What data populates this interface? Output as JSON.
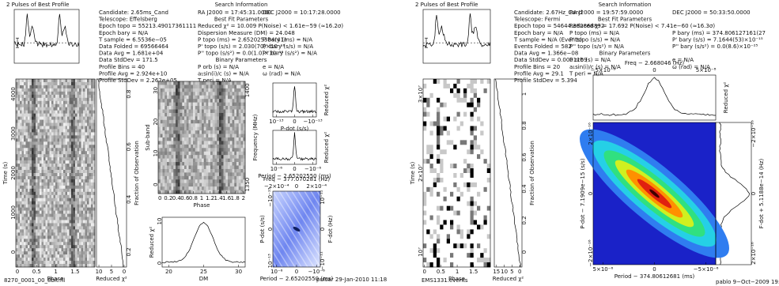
{
  "figures": [
    {
      "profile_title": "2 Pulses of Best Profile",
      "info": [
        "Candidate: 2.65ms_Cand",
        "Telescope: Effelsberg",
        "Epoch topo = 55213.49017361111",
        "Epoch bary = N/A",
        "T sample = 6.5536e−05",
        "Data Folded = 69566464",
        "Data Avg = 1.681e+04",
        "Data StdDev = 171.5",
        "Profile Bins = 40",
        "Profile Avg = 2.924e+10",
        "Profile StdDev = 2.262e+05"
      ],
      "search_title": "Search Information",
      "search_left": [
        "RA J2000 = 17:45:31.0000",
        "Best Fit Parameters",
        "Reduced χ² = 10.009   P(Noise) < 1.61e−59   (≈16.2σ)",
        "Dispersion Measure (DM) = 24.048",
        "P topo (ms) = 2.652025384(41)",
        "P' topo (s/s) = 2.030(70)×10⁻¹⁶",
        "P'' topo (s/s²) = 0.0(1.0)×10⁻¹⁶",
        "Binary Parameters",
        "P orb (s) = N/A",
        "a₁sin(i)/c (s) = N/A",
        "T peri = N/A"
      ],
      "search_right": [
        "DEC J2000 = 10:17:28.0000",
        "P bary (ms) = N/A",
        "P' bary (s/s) = N/A",
        "P'' bary (s/s²) = N/A",
        "e = N/A",
        "ω (rad) = N/A"
      ],
      "plots": {
        "time": {
          "xlabel": "Phase",
          "ylabel": "Time (s)",
          "xticks": [
            "0",
            "0.5",
            "1",
            "1.5"
          ],
          "yticks": [
            "0",
            "1000",
            "2000",
            "3000",
            "4000"
          ]
        },
        "chi_time": {
          "xlabel": "Reduced χ²",
          "xticks": [
            "10",
            "5",
            "0"
          ],
          "y2label": "Fraction of Observation",
          "y2ticks": [
            "0.2",
            "0.4",
            "0.6",
            "0.8"
          ]
        },
        "subband": {
          "xlabel": "Phase",
          "ylabel": "Sub-band",
          "y2label": "Frequency (MHz)",
          "xticks": [
            "0",
            "0.2",
            "0.4",
            "0.6",
            "0.8",
            "1",
            "1.2",
            "1.4",
            "1.6",
            "1.8",
            "2"
          ],
          "yticks": [
            "0",
            "10",
            "20",
            "30"
          ],
          "y2ticks": [
            "1350",
            "1400"
          ]
        },
        "dm": {
          "xlabel": "DM",
          "ylabel": "Reduced χ²",
          "xticks": [
            "20",
            "25",
            "30"
          ],
          "yticks": [
            "0",
            "10"
          ]
        },
        "pdot": {
          "xlabel": "P-dot (s/s)",
          "y2label": "Reduced χ²",
          "xticks": [
            "10⁻¹³",
            "0",
            "−10⁻¹³"
          ]
        },
        "period": {
          "xlabel": "Period − 2.65202550 (ms)",
          "y2label": "Reduced χ²",
          "xticks": [
            "10⁻⁶",
            "0",
            "−10⁻⁶"
          ]
        },
        "pp": {
          "x2label": "Freq − 377.070281 (Hz)",
          "x2ticks": [
            "−2×10⁻⁴",
            "0",
            "2×10⁻⁴"
          ],
          "xlabel": "Period − 2.65202550 (ms)",
          "xticks": [
            "10⁻⁶",
            "0",
            "−10⁻⁶"
          ],
          "ylabel": "P-dot (s/s)",
          "yticks": [
            "10⁻¹³",
            "0",
            "−10⁻¹³"
          ],
          "y2label": "F-dot (Hz)",
          "y2ticks": [
            "−10⁻¹¹",
            "0",
            "10⁻¹¹"
          ]
        }
      },
      "filename": "8270_0001_00_8bit.fil",
      "footer": "pulsar 29-Jan-2010 11:18"
    },
    {
      "profile_title": "2 Pulses of Best Profile",
      "info": [
        "Candidate: 2.67Hz_Cand",
        "Telescope: Fermi",
        "Epoch topo = 54644.382868892",
        "Epoch bary = N/A",
        "T sample = N/A (Events)",
        "Events Folded = 582",
        "Data Avg = 1.366e−08",
        "Data StdDev = 0.0001169",
        "Profile Bins = 20",
        "Profile Avg = 29.1",
        "Profile StdDev = 5.394"
      ],
      "search_title": "Search Information",
      "search_left": [
        "RA J2000 = 19:57:59.0000",
        "Best Fit Parameters",
        "Reduced χ² = 17.692   P(Noise) < 7.41e−60   (≈16.3σ)",
        "P topo (ms) = N/A",
        "P' topo (s/s) = N/A",
        "P'' topo (s/s²) = N/A",
        "Binary Parameters",
        "P orb (s) = N/A",
        "a₁sin(i)/c (s) = N/A",
        "T peri = N/A"
      ],
      "search_right": [
        "DEC J2000 = 50:33:50.0000",
        "P bary (ms) = 374.806127161(27",
        "P' bary (s/s) = 7.1644(53)×10⁻¹⁵",
        "P'' bary (s/s²) = 0.0(8.6)×10⁻²⁵",
        "e = N/A",
        "ω (rad) = N/A"
      ],
      "plots": {
        "time": {
          "xlabel": "Phase",
          "ylabel": "Time (s)",
          "xticks": [
            "0",
            "0.5",
            "1",
            "1.5"
          ],
          "yticks": [
            "10⁷",
            "2×10⁷",
            "3×10⁷"
          ]
        },
        "chi_time": {
          "xlabel": "Reduced χ²",
          "xticks": [
            "15",
            "10",
            "5",
            "0"
          ],
          "y2label": "Fraction of Observation",
          "y2ticks": [
            "0",
            "0.2",
            "0.4",
            "0.6",
            "0.8",
            "1"
          ]
        },
        "freq": {
          "x2label": "Freq − 2.668046 (Hz)",
          "x2ticks": [
            "−5×10⁻⁸",
            "0",
            "5×10⁻⁸"
          ],
          "y2label": "Reduced χ²"
        },
        "pp": {
          "xlabel": "Period − 374.80612681 (ms)",
          "xticks": [
            "5×10⁻⁶",
            "0",
            "−5×10⁻⁶"
          ],
          "ylabel": "P-dot − 7.1909e−15 (s/s)",
          "yticks": [
            "−2×10⁻¹⁶",
            "0",
            "2×10⁻¹⁶"
          ]
        },
        "fdot": {
          "y2label": "F-dot + 5.1188e−14 (Hz)",
          "y2ticks": [
            "2×10⁻¹⁶",
            "0",
            "−2×10⁻¹⁶"
          ]
        }
      },
      "filename": "EMS1331.events",
      "footer": "pablo  9−Oct−2009 19:3"
    }
  ]
}
